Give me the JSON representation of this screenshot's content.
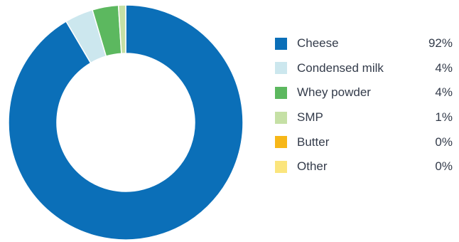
{
  "chart_data": {
    "type": "pie",
    "style": "donut",
    "legend_position": "right",
    "slices": [
      {
        "label": "Cheese",
        "value_text": "92%",
        "value": 91.5,
        "color": "#0b6fb8"
      },
      {
        "label": "Condensed milk",
        "value_text": "4%",
        "value": 3.9,
        "color": "#cce7ee"
      },
      {
        "label": "Whey powder",
        "value_text": "4%",
        "value": 3.6,
        "color": "#5cb85f"
      },
      {
        "label": "SMP",
        "value_text": "1%",
        "value": 1.0,
        "color": "#c5e0a5"
      },
      {
        "label": "Butter",
        "value_text": "0%",
        "value": 0,
        "color": "#f7b718"
      },
      {
        "label": "Other",
        "value_text": "0%",
        "value": 0,
        "color": "#fbe57d"
      }
    ]
  }
}
